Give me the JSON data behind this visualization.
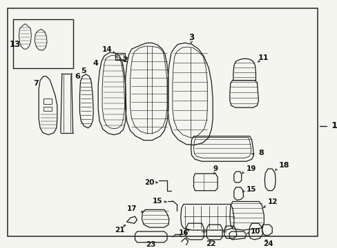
{
  "background_color": "#f5f5f0",
  "border_color": "#333333",
  "fig_width": 4.89,
  "fig_height": 3.6,
  "dpi": 100,
  "line_color": "#1a1a1a",
  "label_fontsize": 7.5,
  "outer_label_fontsize": 9.0
}
